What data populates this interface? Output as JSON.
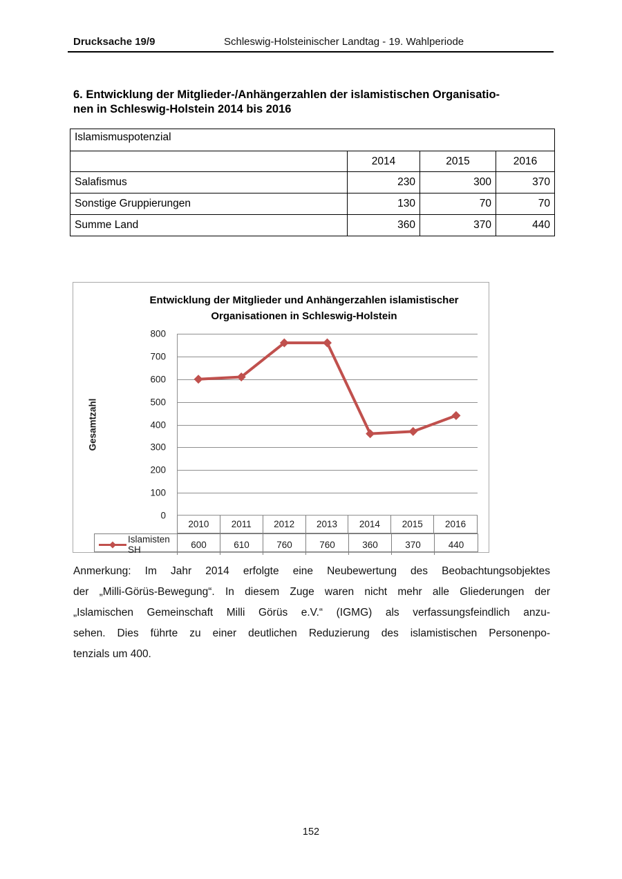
{
  "header": {
    "doc_ref": "Drucksache 19/9",
    "title": "Schleswig-Holsteinischer Landtag - 19. Wahlperiode"
  },
  "heading": {
    "lines": [
      "6. Entwicklung der Mitglieder-/Anhängerzahlen der islamistischen Organisatio-",
      "nen in Schleswig-Holstein 2014 bis 2016"
    ]
  },
  "table": {
    "caption": "Islamismuspotenzial",
    "col_headers": [
      "2014",
      "2015",
      "2016"
    ],
    "rows": [
      {
        "label": "Salafismus",
        "values": [
          "230",
          "300",
          "370"
        ]
      },
      {
        "label": "Sonstige Gruppierungen",
        "values": [
          "130",
          "70",
          "70"
        ]
      },
      {
        "label": "Summe Land",
        "values": [
          "360",
          "370",
          "440"
        ]
      }
    ]
  },
  "chart_data": {
    "type": "line",
    "title": "Entwicklung der Mitglieder und Anhängerzahlen islamistischer Organisationen in Schleswig-Holstein",
    "title_lines": [
      "Entwicklung der Mitglieder und Anhängerzahlen islamistischer",
      "Organisationen in Schleswig-Holstein"
    ],
    "ylabel": "Gesamtzahl",
    "xlabel": "",
    "categories": [
      "2010",
      "2011",
      "2012",
      "2013",
      "2014",
      "2015",
      "2016"
    ],
    "series": [
      {
        "name": "Islamisten SH",
        "color": "#c0504d",
        "marker": "diamond",
        "values": [
          600,
          610,
          760,
          760,
          360,
          370,
          440
        ]
      }
    ],
    "ylim": [
      0,
      800
    ],
    "ytick_step": 100,
    "yticks": [
      800,
      700,
      600,
      500,
      400,
      300,
      200,
      100,
      0
    ],
    "grid": "horizontal",
    "grid_color": "#8e8e8e",
    "legend_position": "bottom-data-table"
  },
  "note": {
    "lines": [
      "Anmerkung: Im Jahr 2014 erfolgte eine Neubewertung des Beobachtungsobjektes",
      "der „Milli-Görüs-Bewegung“. In diesem Zuge waren nicht mehr alle Gliederungen der",
      "„Islamischen Gemeinschaft Milli Görüs e.V.“ (IGMG) als verfassungsfeindlich anzu-",
      "sehen. Dies führte zu einer deutlichen Reduzierung des islamistischen Personenpo-",
      "tenzials um 400."
    ]
  },
  "footer": {
    "page_number": "152"
  }
}
